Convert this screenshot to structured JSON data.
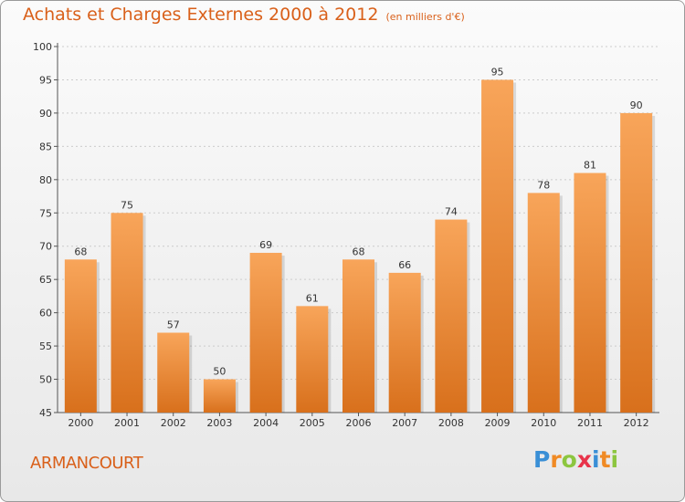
{
  "title": "Achats et Charges Externes 2000 à 2012",
  "subtitle": "(en milliers d'€)",
  "town": "ARMANCOURT",
  "brand": {
    "letters": [
      "P",
      "r",
      "o",
      "x",
      "i",
      "t",
      "i"
    ],
    "colors": [
      "#3a8fd6",
      "#f08a24",
      "#8cc63f",
      "#e8334a",
      "#3a8fd6",
      "#f08a24",
      "#8cc63f"
    ]
  },
  "colors": {
    "title": "#d9601a",
    "bar_top": "#f8a55a",
    "bar_bottom": "#d8701c",
    "grid": "#cccccc"
  },
  "chart_data": {
    "type": "bar",
    "title": "Achats et Charges Externes 2000 à 2012",
    "subtitle": "(en milliers d'€)",
    "categories": [
      "2000",
      "2001",
      "2002",
      "2003",
      "2004",
      "2005",
      "2006",
      "2007",
      "2008",
      "2009",
      "2010",
      "2011",
      "2012"
    ],
    "values": [
      68,
      75,
      57,
      50,
      69,
      61,
      68,
      66,
      74,
      95,
      78,
      81,
      90
    ],
    "ylim": [
      45,
      100
    ],
    "yticks": [
      45,
      50,
      55,
      60,
      65,
      70,
      75,
      80,
      85,
      90,
      95,
      100
    ],
    "grid": "horizontal dashed",
    "legend": "none"
  }
}
